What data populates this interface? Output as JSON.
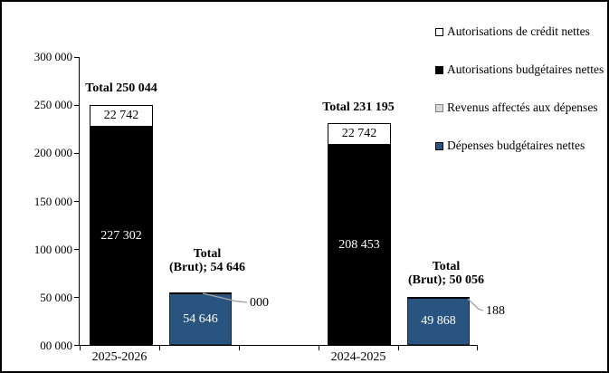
{
  "chart_data": {
    "type": "bar",
    "title": "",
    "xlabel": "",
    "ylabel": "",
    "ylim": [
      0,
      300000
    ],
    "grid": false,
    "legend_position": "top-right",
    "y_ticks": [
      "300 000",
      "250 000",
      "200 000",
      "150 000",
      "100 000",
      "50 000",
      "00 000"
    ],
    "colors": {
      "blue": "#2A5480",
      "black": "#000000",
      "white": "#FFFFFF",
      "gray": "#D9D9D9",
      "gray_border": "#7F7F7F",
      "leader_line": "#A6A6A6"
    },
    "legend": [
      {
        "label": "Autorisations de crédit nettes",
        "fill": "#FFFFFF",
        "border": "#000000"
      },
      {
        "label": "Autorisations budgétaires nettes",
        "fill": "#000000",
        "border": "#000000"
      },
      {
        "label": "Revenus affectés aux dépenses",
        "fill": "#D9D9D9",
        "border": "#7F7F7F"
      },
      {
        "label": "Dépenses budgétaires nettes",
        "fill": "#2A5480",
        "border": "#000000"
      }
    ],
    "groups": [
      {
        "category": "2025-2026",
        "total_label": "Total 250 044",
        "total": 250044,
        "credit_segment": {
          "value": 22742,
          "label": "22 742"
        },
        "budget_segment": {
          "value": 227302,
          "label": "227 302"
        },
        "gross": {
          "label_line1": "Total",
          "label_line2": "(Brut); 54 646",
          "value": 54646,
          "label": "54 646",
          "callout": "000"
        }
      },
      {
        "category": "2024-2025",
        "total_label": "Total 231 195",
        "total": 231195,
        "credit_segment": {
          "value": 22742,
          "label": "22 742"
        },
        "budget_segment": {
          "value": 208453,
          "label": "208 453"
        },
        "gross": {
          "label_line1": "Total",
          "label_line2": "(Brut); 50 056",
          "value": 49868,
          "label": "49 868",
          "callout": "188"
        }
      }
    ]
  }
}
